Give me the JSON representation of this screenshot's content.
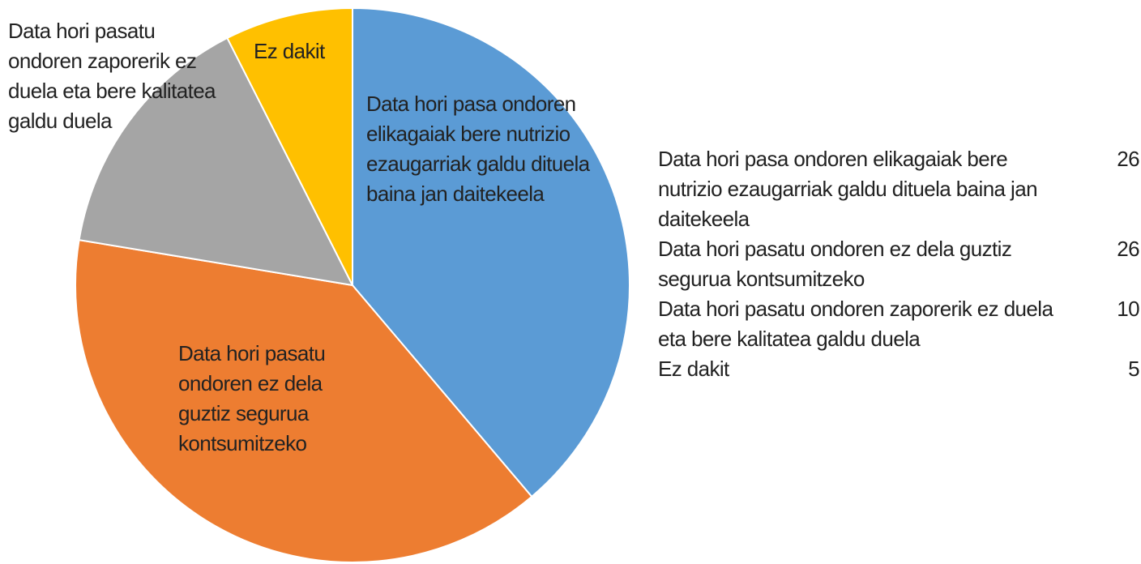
{
  "chart_data": {
    "type": "pie",
    "categories": [
      "Data hori pasa ondoren elikagaiak bere nutrizio ezaugarriak galdu dituela baina jan daitekeela",
      "Data hori pasatu ondoren ez dela guztiz segurua kontsumitzeko",
      "Data hori pasatu ondoren zaporerik ez duela eta bere kalitatea galdu duela",
      "Ez dakit"
    ],
    "values": [
      26,
      26,
      10,
      5
    ],
    "colors": [
      "#5b9bd5",
      "#ed7d31",
      "#a5a5a5",
      "#ffc000"
    ]
  }
}
